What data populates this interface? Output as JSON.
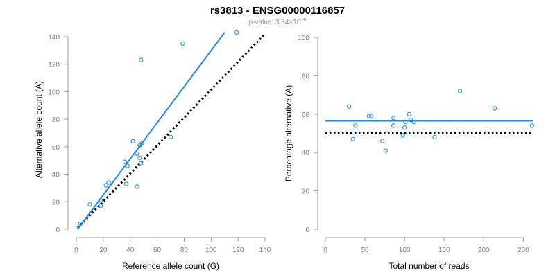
{
  "figure": {
    "title": "rs3813 - ENSG00000116857",
    "pvalue_prefix": "p-value: 3.34×10",
    "pvalue_exponent": "−8"
  },
  "chart_data": [
    {
      "type": "scatter",
      "xlabel": "Reference allele count (G)",
      "ylabel": "Alternative allele count (A)",
      "xlim": [
        0,
        140
      ],
      "ylim": [
        0,
        145
      ],
      "xticks": [
        0,
        20,
        40,
        60,
        80,
        100,
        120,
        140
      ],
      "yticks": [
        0,
        20,
        40,
        60,
        80,
        100,
        120,
        140
      ],
      "points": [
        {
          "x": 3,
          "y": 4
        },
        {
          "x": 10,
          "y": 18
        },
        {
          "x": 18,
          "y": 17
        },
        {
          "x": 18,
          "y": 21
        },
        {
          "x": 22,
          "y": 32
        },
        {
          "x": 24,
          "y": 34
        },
        {
          "x": 36,
          "y": 49
        },
        {
          "x": 37,
          "y": 33
        },
        {
          "x": 38,
          "y": 46
        },
        {
          "x": 42,
          "y": 64
        },
        {
          "x": 45,
          "y": 31
        },
        {
          "x": 45,
          "y": 55
        },
        {
          "x": 47,
          "y": 52
        },
        {
          "x": 47,
          "y": 61
        },
        {
          "x": 48,
          "y": 123
        },
        {
          "x": 49,
          "y": 63
        },
        {
          "x": 48,
          "y": 48
        },
        {
          "x": 70,
          "y": 67
        },
        {
          "x": 79,
          "y": 135
        },
        {
          "x": 119,
          "y": 143
        }
      ],
      "fit_line": {
        "x": [
          1,
          110
        ],
        "y": [
          0,
          143
        ],
        "color": "#1e88e5"
      },
      "reference_line": {
        "x": [
          1,
          140
        ],
        "y": [
          1,
          142
        ],
        "color": "#000000",
        "style": "dotted"
      },
      "point_color": "#1e88e5",
      "grid": false
    },
    {
      "type": "scatter",
      "xlabel": "Total number of reads",
      "ylabel": "Percentage alternative (A)",
      "xlim": [
        0,
        262
      ],
      "ylim": [
        0,
        100
      ],
      "xticks": [
        0,
        50,
        100,
        150,
        200,
        250
      ],
      "yticks": [
        0,
        20,
        40,
        60,
        80,
        100
      ],
      "points": [
        {
          "x": 30,
          "y": 64
        },
        {
          "x": 35,
          "y": 47
        },
        {
          "x": 38,
          "y": 54
        },
        {
          "x": 55,
          "y": 59
        },
        {
          "x": 58,
          "y": 59
        },
        {
          "x": 72,
          "y": 46
        },
        {
          "x": 76,
          "y": 41
        },
        {
          "x": 86,
          "y": 58
        },
        {
          "x": 86,
          "y": 54
        },
        {
          "x": 98,
          "y": 49
        },
        {
          "x": 100,
          "y": 53
        },
        {
          "x": 101,
          "y": 56
        },
        {
          "x": 106,
          "y": 60
        },
        {
          "x": 108,
          "y": 57
        },
        {
          "x": 112,
          "y": 56
        },
        {
          "x": 138,
          "y": 48
        },
        {
          "x": 170,
          "y": 72
        },
        {
          "x": 214,
          "y": 63
        },
        {
          "x": 261,
          "y": 54
        }
      ],
      "fit_line": {
        "x": [
          0,
          262
        ],
        "y": [
          56.5,
          56.5
        ],
        "color": "#1e88e5"
      },
      "reference_line": {
        "x": [
          0,
          262
        ],
        "y": [
          50,
          50
        ],
        "color": "#000000",
        "style": "dotted"
      },
      "point_color": "#1e88e5",
      "grid": false
    }
  ]
}
